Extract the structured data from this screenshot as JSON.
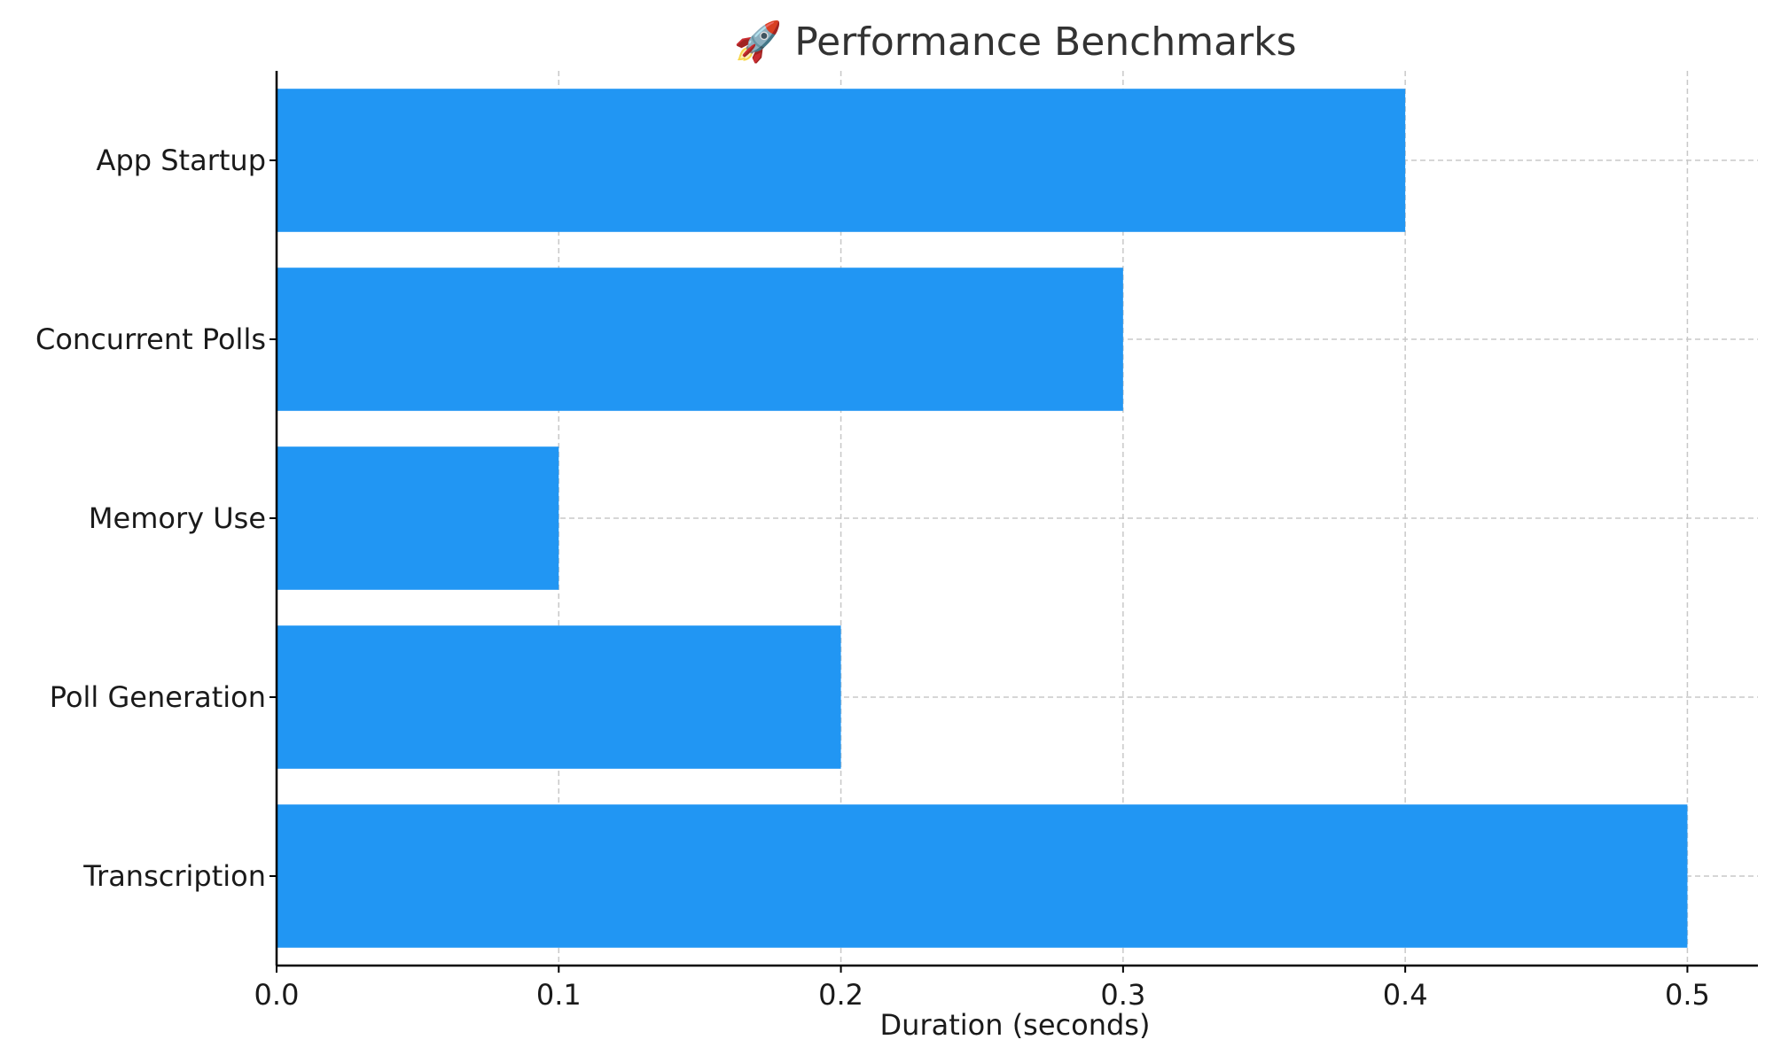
{
  "chart_data": {
    "type": "bar",
    "orientation": "horizontal",
    "title": "🚀 Performance Benchmarks",
    "xlabel": "Duration (seconds)",
    "ylabel": "",
    "categories": [
      "App Startup",
      "Concurrent Polls",
      "Memory Use",
      "Poll Generation",
      "Transcription"
    ],
    "values": [
      0.4,
      0.3,
      0.1,
      0.2,
      0.5
    ],
    "xlim": [
      0,
      0.525
    ],
    "xticks": [
      "0.0",
      "0.1",
      "0.2",
      "0.3",
      "0.4",
      "0.5"
    ],
    "grid": true,
    "bar_color": "#2196f3"
  }
}
